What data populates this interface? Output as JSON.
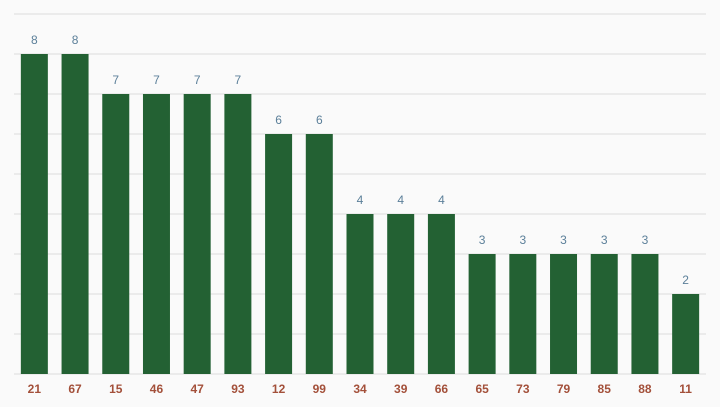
{
  "chart_data": {
    "type": "bar",
    "categories": [
      "21",
      "67",
      "15",
      "46",
      "47",
      "93",
      "12",
      "99",
      "34",
      "39",
      "66",
      "65",
      "73",
      "79",
      "85",
      "88",
      "11"
    ],
    "values": [
      8,
      8,
      7,
      7,
      7,
      7,
      6,
      6,
      4,
      4,
      4,
      3,
      3,
      3,
      3,
      3,
      2
    ],
    "color": "#236133",
    "ylim": [
      0,
      9
    ],
    "yticks": [
      0,
      1,
      2,
      3,
      4,
      5,
      6,
      7,
      8,
      9
    ],
    "grid": true
  }
}
